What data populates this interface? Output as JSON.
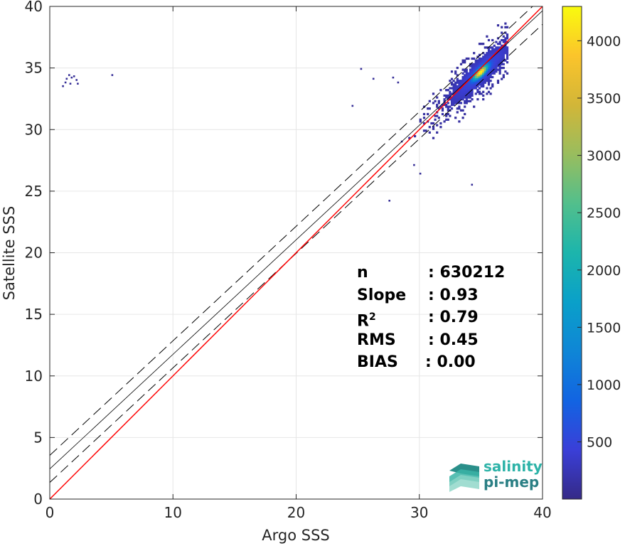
{
  "chart_data": {
    "type": "heatmap",
    "xlabel": "Argo SSS",
    "ylabel": "Satellite SSS",
    "xlim": [
      0,
      40
    ],
    "ylim": [
      0,
      40
    ],
    "xticks": [
      "0",
      "10",
      "20",
      "30",
      "40"
    ],
    "yticks": [
      "0",
      "5",
      "10",
      "15",
      "20",
      "25",
      "30",
      "35",
      "40"
    ],
    "grid": true,
    "colorbar": {
      "min": 1,
      "max": 4300,
      "ticks": [
        "500",
        "1000",
        "1500",
        "2000",
        "2500",
        "3000",
        "3500",
        "4000"
      ],
      "colormap": "parula"
    },
    "density_center": {
      "x": 34.9,
      "y": 34.6
    },
    "lines": {
      "identity": {
        "slope": 1,
        "intercept": 0,
        "color": "#ff0000"
      },
      "fit": {
        "slope": 0.93,
        "intercept": 2.45,
        "color": "#000000"
      },
      "fit_upper": {
        "slope": 0.93,
        "intercept": 3.55
      },
      "fit_lower": {
        "slope": 0.93,
        "intercept": 1.35
      }
    },
    "stats": [
      {
        "label": "n",
        "value": ": 630212"
      },
      {
        "label": "Slope",
        "value": ": 0.93"
      },
      {
        "label": "R",
        "sup": "2",
        "value": ": 0.79"
      },
      {
        "label": "RMS",
        "value": ": 0.45"
      },
      {
        "label": "BIAS",
        "value": ": 0.00"
      }
    ]
  },
  "logo": {
    "line1": "salinity",
    "line2": "pi-mep"
  },
  "colors": {
    "identity": "#ff0000",
    "fit": "#000000",
    "logo_primary": "#2db3a8",
    "logo_secondary": "#2a7f84"
  }
}
